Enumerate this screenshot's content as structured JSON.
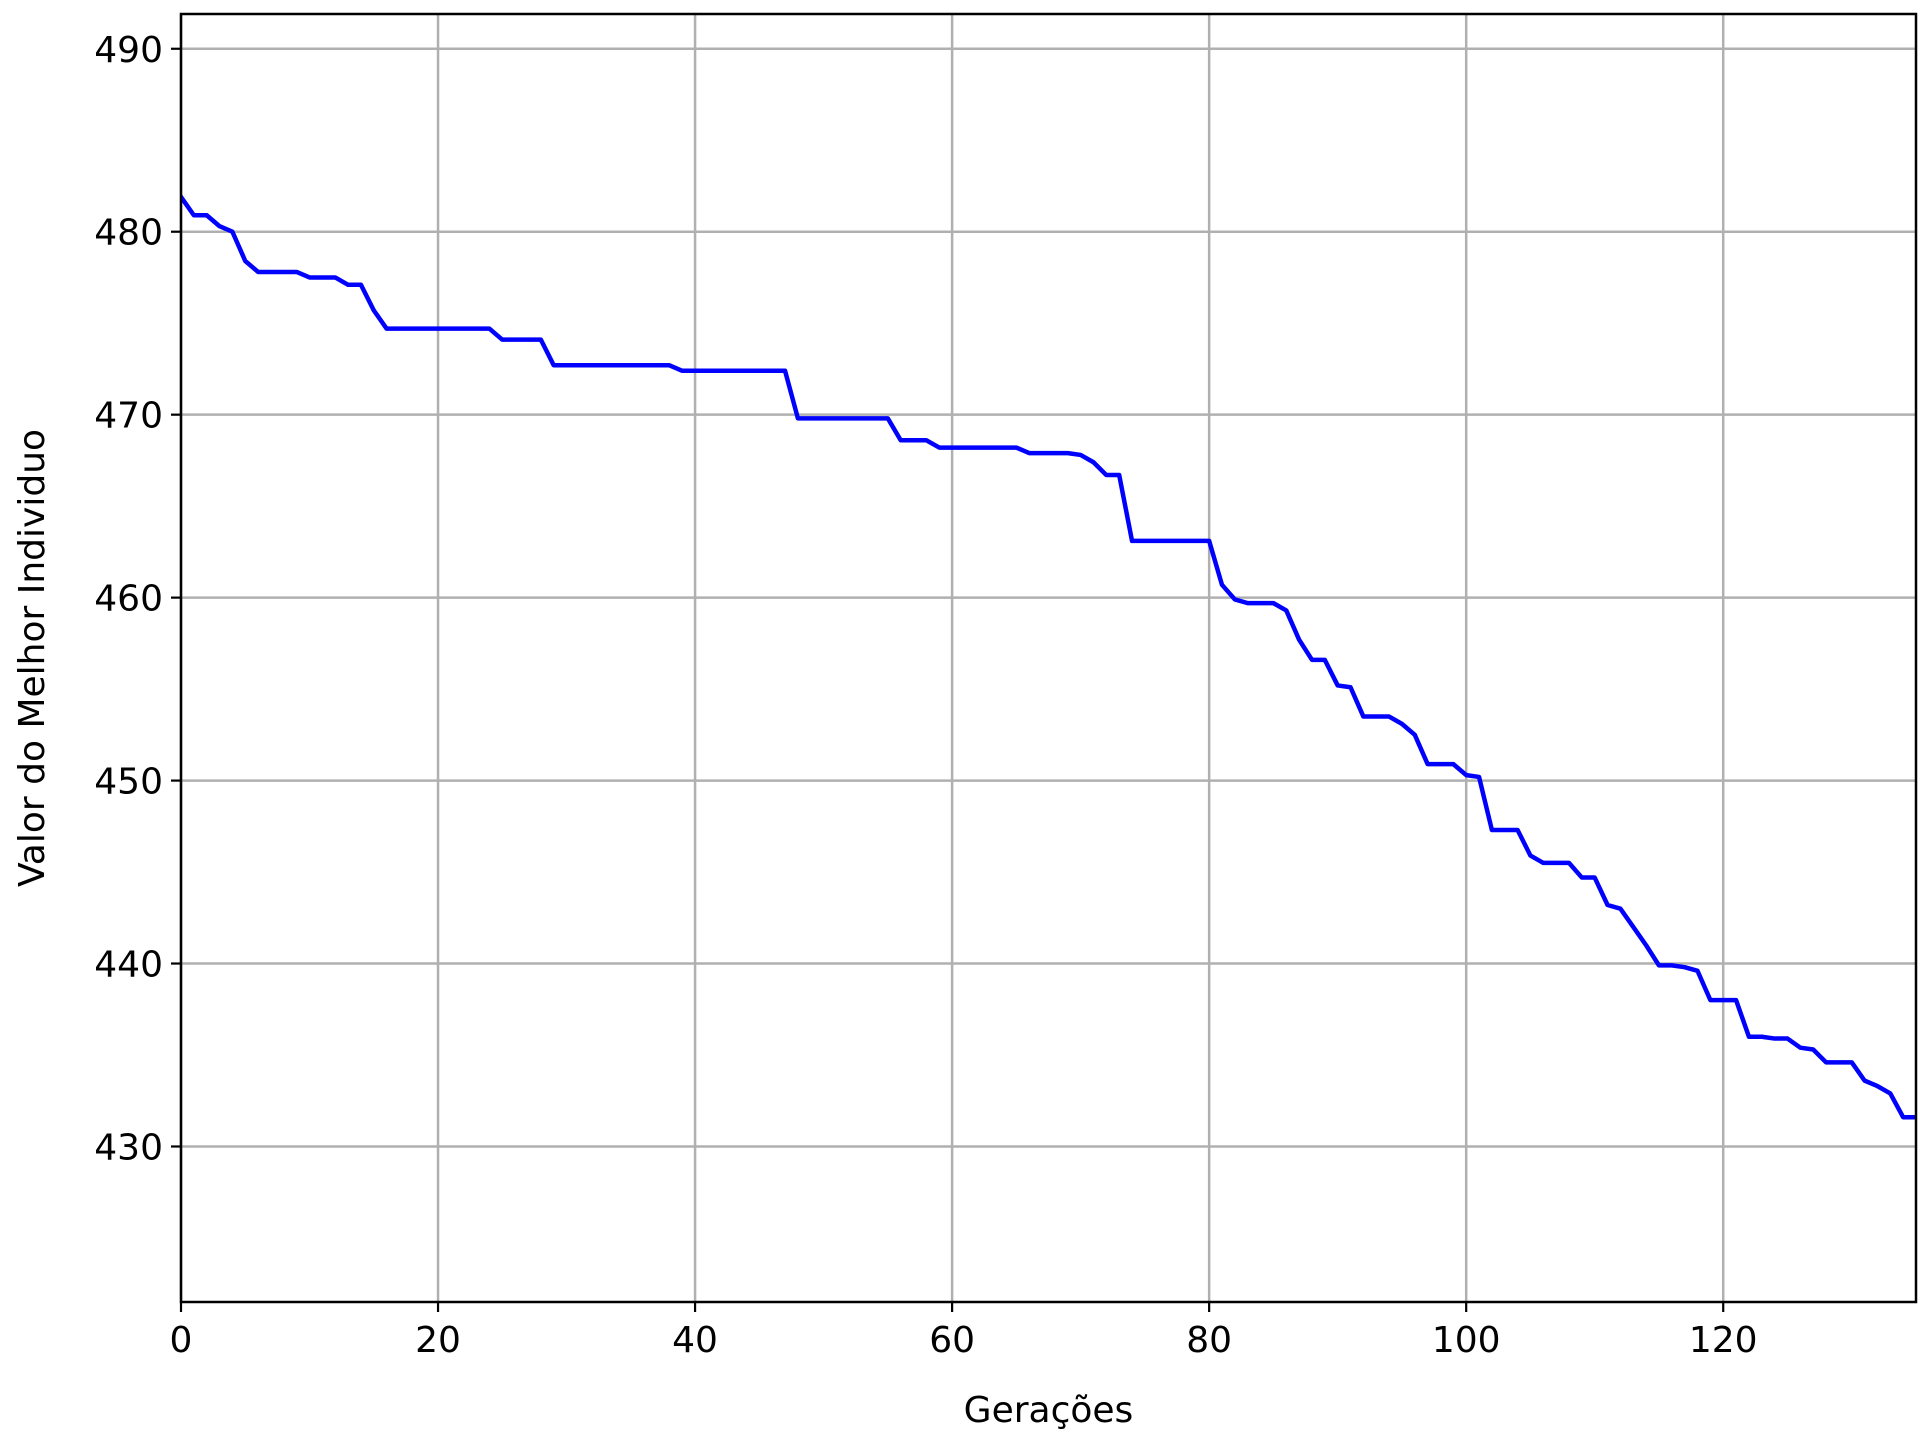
{
  "chart_data": {
    "type": "line",
    "title": "",
    "xlabel": "Gerações",
    "ylabel": "Valor do Melhor Individuo",
    "xlim": [
      0,
      135
    ],
    "ylim": [
      421.5,
      491.9
    ],
    "xticks": [
      0,
      20,
      40,
      60,
      80,
      100,
      120
    ],
    "yticks": [
      430,
      440,
      450,
      460,
      470,
      480,
      490
    ],
    "grid": true,
    "legend": "none",
    "series_color": "#0000ff",
    "series": [
      {
        "x": [
          0,
          1,
          2,
          3,
          4,
          5,
          6,
          7,
          8,
          9,
          10,
          11,
          12,
          13,
          14,
          15,
          16,
          17,
          18,
          19,
          20,
          21,
          22,
          23,
          24,
          25,
          26,
          27,
          28,
          29,
          30,
          31,
          32,
          33,
          34,
          35,
          36,
          37,
          38,
          39,
          40,
          41,
          42,
          43,
          44,
          45,
          46,
          47,
          48,
          49,
          50,
          51,
          52,
          53,
          54,
          55,
          56,
          57,
          58,
          59,
          60,
          61,
          62,
          63,
          64,
          65,
          66,
          67,
          68,
          69,
          70,
          71,
          72,
          73,
          74,
          75,
          76,
          77,
          78,
          79,
          80,
          81,
          82,
          83,
          84,
          85,
          86,
          87,
          88,
          89,
          90,
          91,
          92,
          93,
          94,
          95,
          96,
          97,
          98,
          99,
          100,
          101,
          102,
          103,
          104,
          105,
          106,
          107,
          108,
          109,
          110,
          111,
          112,
          113,
          114,
          115,
          116,
          117,
          118,
          119,
          120,
          121,
          122,
          123,
          124,
          125,
          126,
          127,
          128,
          129,
          130,
          131,
          132,
          133,
          134,
          135
        ],
        "y": [
          481.9,
          480.9,
          480.9,
          480.3,
          480.0,
          478.4,
          477.8,
          477.8,
          477.8,
          477.8,
          477.5,
          477.5,
          477.5,
          477.1,
          477.1,
          475.7,
          474.7,
          474.7,
          474.7,
          474.7,
          474.7,
          474.7,
          474.7,
          474.7,
          474.7,
          474.1,
          474.1,
          474.1,
          474.1,
          472.7,
          472.7,
          472.7,
          472.7,
          472.7,
          472.7,
          472.7,
          472.7,
          472.7,
          472.7,
          472.4,
          472.4,
          472.4,
          472.4,
          472.4,
          472.4,
          472.4,
          472.4,
          472.4,
          469.8,
          469.8,
          469.8,
          469.8,
          469.8,
          469.8,
          469.8,
          469.8,
          468.6,
          468.6,
          468.6,
          468.2,
          468.2,
          468.2,
          468.2,
          468.2,
          468.2,
          468.2,
          467.9,
          467.9,
          467.9,
          467.9,
          467.8,
          467.4,
          466.7,
          466.7,
          463.1,
          463.1,
          463.1,
          463.1,
          463.1,
          463.1,
          463.1,
          460.7,
          459.9,
          459.7,
          459.7,
          459.7,
          459.3,
          457.7,
          456.6,
          456.6,
          455.2,
          455.1,
          453.5,
          453.5,
          453.5,
          453.1,
          452.5,
          450.9,
          450.9,
          450.9,
          450.3,
          450.2,
          447.3,
          447.3,
          447.3,
          445.9,
          445.5,
          445.5,
          445.5,
          444.7,
          444.7,
          443.2,
          443.0,
          442.0,
          441.0,
          439.9,
          439.9,
          439.8,
          439.6,
          438.0,
          438.0,
          438.0,
          436.0,
          436.0,
          435.9,
          435.9,
          435.4,
          435.3,
          434.6,
          434.6,
          434.6,
          433.6,
          433.3,
          432.9,
          431.6,
          431.6
        ]
      }
    ]
  }
}
